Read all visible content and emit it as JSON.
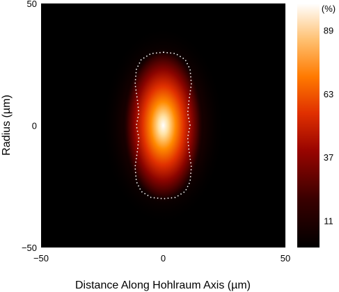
{
  "chart_data": {
    "type": "heatmap",
    "title": "",
    "xlabel": "Distance Along Hohlraum Axis (µm)",
    "ylabel": "Radius (µm)",
    "xlim": [
      -50,
      50
    ],
    "ylim": [
      -50,
      50
    ],
    "x_ticks": [
      -50,
      0,
      50
    ],
    "x_tick_labels": [
      "−50",
      "0",
      "50"
    ],
    "y_ticks": [
      -50,
      0,
      50
    ],
    "y_tick_labels": [
      "−50",
      "0",
      "50"
    ],
    "colorbar": {
      "unit": "(%)",
      "range": [
        0,
        100
      ],
      "ticks": [
        11,
        37,
        63,
        89
      ],
      "tick_labels": [
        "11",
        "37",
        "63",
        "89"
      ],
      "colormap": "black-red-orange-white"
    },
    "peak": {
      "x": 0,
      "y": 0,
      "value": 100
    },
    "spot_extent": {
      "x_half_width": 7,
      "y_half_width": 24
    },
    "contour": {
      "style": "white dotted",
      "points": [
        [
          0,
          30
        ],
        [
          5,
          29.5
        ],
        [
          9,
          27
        ],
        [
          11,
          23
        ],
        [
          11.5,
          17
        ],
        [
          10.5,
          10
        ],
        [
          10,
          5
        ],
        [
          11,
          0
        ],
        [
          10,
          -5
        ],
        [
          10.5,
          -10
        ],
        [
          11.5,
          -17
        ],
        [
          11,
          -23
        ],
        [
          9,
          -27
        ],
        [
          5,
          -29.5
        ],
        [
          0,
          -30
        ],
        [
          -5,
          -29.5
        ],
        [
          -9,
          -27
        ],
        [
          -11,
          -23
        ],
        [
          -11.5,
          -17
        ],
        [
          -10.5,
          -10
        ],
        [
          -10,
          -5
        ],
        [
          -11,
          0
        ],
        [
          -10,
          5
        ],
        [
          -10.5,
          10
        ],
        [
          -11.5,
          17
        ],
        [
          -11,
          23
        ],
        [
          -9,
          27
        ],
        [
          -5,
          29.5
        ]
      ]
    },
    "grid": false,
    "legend": "none"
  }
}
